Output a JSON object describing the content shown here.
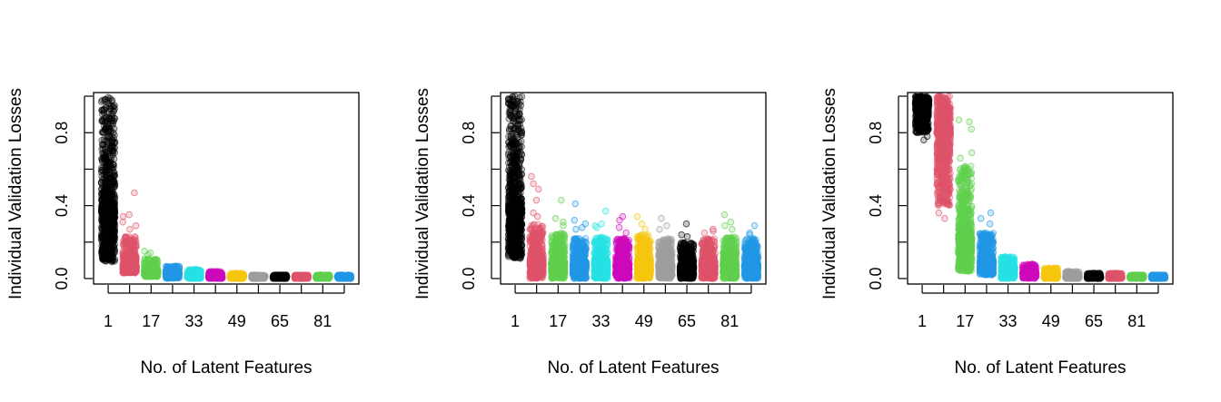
{
  "colors": {
    "palette": [
      "#000000",
      "#DF536B",
      "#61D04F",
      "#2297E6",
      "#28E2E5",
      "#CD0BBC",
      "#F5C710",
      "#9E9E9E"
    ]
  },
  "chart_data": [
    {
      "type": "scatter",
      "style": "jittered strip plot, semi-transparent points",
      "title": "",
      "xlabel": "No. of Latent Features",
      "ylabel": "Individual Validation Losses",
      "categories": [
        1,
        9,
        17,
        25,
        33,
        41,
        49,
        57,
        65,
        73,
        81,
        89
      ],
      "xtick_labels": [
        "1",
        "17",
        "33",
        "49",
        "65",
        "81"
      ],
      "yticks": [
        "0.0",
        "0.4",
        "0.8"
      ],
      "ylim": [
        -0.03,
        1.02
      ],
      "series": [
        {
          "x": 1,
          "color_index": 0,
          "min": 0.09,
          "max": 1.0,
          "median": 0.37,
          "outliers": []
        },
        {
          "x": 9,
          "color_index": 1,
          "min": 0.03,
          "max": 0.23,
          "median": 0.07,
          "outliers": [
            0.47,
            0.35,
            0.34,
            0.31,
            0.29,
            0.27
          ]
        },
        {
          "x": 17,
          "color_index": 2,
          "min": 0.01,
          "max": 0.11,
          "median": 0.04,
          "outliers": [
            0.15,
            0.14,
            0.13
          ]
        },
        {
          "x": 25,
          "color_index": 3,
          "min": 0.0,
          "max": 0.07,
          "median": 0.03,
          "outliers": []
        },
        {
          "x": 33,
          "color_index": 4,
          "min": 0.0,
          "max": 0.05,
          "median": 0.02,
          "outliers": []
        },
        {
          "x": 41,
          "color_index": 5,
          "min": 0.0,
          "max": 0.04,
          "median": 0.01,
          "outliers": []
        },
        {
          "x": 49,
          "color_index": 6,
          "min": 0.0,
          "max": 0.03,
          "median": 0.01,
          "outliers": []
        },
        {
          "x": 57,
          "color_index": 7,
          "min": 0.0,
          "max": 0.02,
          "median": 0.01,
          "outliers": []
        },
        {
          "x": 65,
          "color_index": 0,
          "min": 0.0,
          "max": 0.02,
          "median": 0.01,
          "outliers": []
        },
        {
          "x": 73,
          "color_index": 1,
          "min": 0.0,
          "max": 0.02,
          "median": 0.01,
          "outliers": []
        },
        {
          "x": 81,
          "color_index": 2,
          "min": 0.0,
          "max": 0.02,
          "median": 0.01,
          "outliers": []
        },
        {
          "x": 89,
          "color_index": 3,
          "min": 0.0,
          "max": 0.02,
          "median": 0.01,
          "outliers": []
        }
      ]
    },
    {
      "type": "scatter",
      "style": "jittered strip plot, semi-transparent points",
      "title": "",
      "xlabel": "No. of Latent Features",
      "ylabel": "Individual Validation Losses",
      "categories": [
        1,
        9,
        17,
        25,
        33,
        41,
        49,
        57,
        65,
        73,
        81,
        89
      ],
      "xtick_labels": [
        "1",
        "17",
        "33",
        "49",
        "65",
        "81"
      ],
      "yticks": [
        "0.0",
        "0.4",
        "0.8"
      ],
      "ylim": [
        -0.03,
        1.02
      ],
      "series": [
        {
          "x": 1,
          "color_index": 0,
          "min": 0.11,
          "max": 1.0,
          "median": 0.38,
          "outliers": []
        },
        {
          "x": 9,
          "color_index": 1,
          "min": 0.0,
          "max": 0.3,
          "median": 0.09,
          "outliers": [
            0.56,
            0.52,
            0.49,
            0.43,
            0.36,
            0.34
          ]
        },
        {
          "x": 17,
          "color_index": 2,
          "min": 0.0,
          "max": 0.25,
          "median": 0.08,
          "outliers": [
            0.43,
            0.33,
            0.31,
            0.29
          ]
        },
        {
          "x": 25,
          "color_index": 3,
          "min": 0.0,
          "max": 0.22,
          "median": 0.07,
          "outliers": [
            0.41,
            0.32,
            0.3,
            0.28,
            0.27
          ]
        },
        {
          "x": 33,
          "color_index": 4,
          "min": 0.0,
          "max": 0.23,
          "median": 0.07,
          "outliers": [
            0.37,
            0.3,
            0.29,
            0.28
          ]
        },
        {
          "x": 41,
          "color_index": 5,
          "min": 0.0,
          "max": 0.22,
          "median": 0.07,
          "outliers": [
            0.34,
            0.32,
            0.28,
            0.25
          ]
        },
        {
          "x": 49,
          "color_index": 6,
          "min": 0.0,
          "max": 0.24,
          "median": 0.07,
          "outliers": [
            0.34,
            0.3,
            0.27
          ]
        },
        {
          "x": 57,
          "color_index": 7,
          "min": 0.0,
          "max": 0.22,
          "median": 0.07,
          "outliers": [
            0.33,
            0.29,
            0.27
          ]
        },
        {
          "x": 65,
          "color_index": 0,
          "min": 0.0,
          "max": 0.2,
          "median": 0.06,
          "outliers": [
            0.3,
            0.24,
            0.23
          ]
        },
        {
          "x": 73,
          "color_index": 1,
          "min": 0.0,
          "max": 0.22,
          "median": 0.07,
          "outliers": [
            0.27,
            0.26,
            0.25
          ]
        },
        {
          "x": 81,
          "color_index": 2,
          "min": 0.0,
          "max": 0.23,
          "median": 0.07,
          "outliers": [
            0.35,
            0.31,
            0.29,
            0.27
          ]
        },
        {
          "x": 89,
          "color_index": 3,
          "min": 0.0,
          "max": 0.22,
          "median": 0.07,
          "outliers": [
            0.29,
            0.25,
            0.24
          ]
        }
      ]
    },
    {
      "type": "scatter",
      "style": "jittered strip plot, semi-transparent points",
      "title": "",
      "xlabel": "No. of Latent Features",
      "ylabel": "Individual Validation Losses",
      "categories": [
        1,
        9,
        17,
        25,
        33,
        41,
        49,
        57,
        65,
        73,
        81,
        89
      ],
      "xtick_labels": [
        "1",
        "17",
        "33",
        "49",
        "65",
        "81"
      ],
      "yticks": [
        "0.0",
        "0.4",
        "0.8"
      ],
      "ylim": [
        -0.03,
        1.02
      ],
      "series": [
        {
          "x": 1,
          "color_index": 0,
          "min": 0.8,
          "max": 1.0,
          "median": 0.96,
          "outliers": [
            0.76,
            0.78
          ]
        },
        {
          "x": 9,
          "color_index": 1,
          "min": 0.4,
          "max": 1.0,
          "median": 0.8,
          "outliers": [
            0.33,
            0.36
          ]
        },
        {
          "x": 17,
          "color_index": 2,
          "min": 0.04,
          "max": 0.62,
          "median": 0.22,
          "outliers": [
            0.87,
            0.86,
            0.82,
            0.69,
            0.66
          ]
        },
        {
          "x": 25,
          "color_index": 3,
          "min": 0.02,
          "max": 0.25,
          "median": 0.09,
          "outliers": [
            0.36,
            0.33,
            0.3
          ]
        },
        {
          "x": 33,
          "color_index": 4,
          "min": 0.0,
          "max": 0.12,
          "median": 0.05,
          "outliers": []
        },
        {
          "x": 41,
          "color_index": 5,
          "min": 0.0,
          "max": 0.08,
          "median": 0.03,
          "outliers": []
        },
        {
          "x": 49,
          "color_index": 6,
          "min": 0.0,
          "max": 0.06,
          "median": 0.02,
          "outliers": []
        },
        {
          "x": 57,
          "color_index": 7,
          "min": 0.0,
          "max": 0.04,
          "median": 0.01,
          "outliers": []
        },
        {
          "x": 65,
          "color_index": 0,
          "min": 0.0,
          "max": 0.03,
          "median": 0.01,
          "outliers": []
        },
        {
          "x": 73,
          "color_index": 1,
          "min": 0.0,
          "max": 0.03,
          "median": 0.01,
          "outliers": []
        },
        {
          "x": 81,
          "color_index": 2,
          "min": 0.0,
          "max": 0.02,
          "median": 0.01,
          "outliers": []
        },
        {
          "x": 89,
          "color_index": 3,
          "min": 0.0,
          "max": 0.02,
          "median": 0.01,
          "outliers": []
        }
      ]
    }
  ]
}
